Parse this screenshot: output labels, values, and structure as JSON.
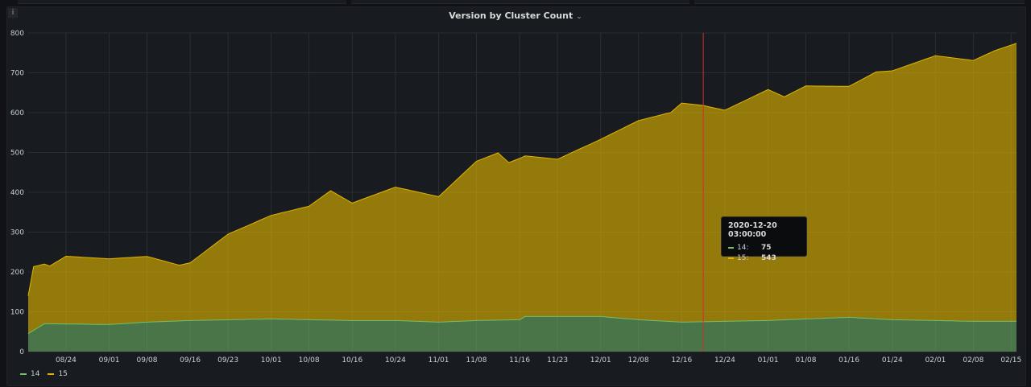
{
  "panel": {
    "title": "Version by Cluster Count",
    "info_icon": "i"
  },
  "colors": {
    "series_14": "#73bf69",
    "series_15": "#e0b400",
    "marker": "#d03030"
  },
  "tooltip": {
    "time": "2020-12-20 03:00:00",
    "rows": [
      {
        "name": "14:",
        "value": "75"
      },
      {
        "name": "15:",
        "value": "543"
      }
    ]
  },
  "legend": [
    {
      "name": "14"
    },
    {
      "name": "15"
    }
  ],
  "chart_data": {
    "type": "area",
    "stacked": true,
    "title": "Version by Cluster Count",
    "xlabel": "",
    "ylabel": "",
    "ylim": [
      0,
      800
    ],
    "yticks": [
      "0",
      "100",
      "200",
      "300",
      "400",
      "500",
      "600",
      "700",
      "800"
    ],
    "xticks": [
      "08/24",
      "09/01",
      "09/08",
      "09/16",
      "09/23",
      "10/01",
      "10/08",
      "10/16",
      "10/24",
      "11/01",
      "11/08",
      "11/16",
      "11/23",
      "12/01",
      "12/08",
      "12/16",
      "12/24",
      "01/01",
      "01/08",
      "01/16",
      "01/24",
      "02/01",
      "02/08",
      "02/15"
    ],
    "x_start": "2020-08-17",
    "x_end": "2021-02-16",
    "hover_time": "2020-12-20",
    "grid": true,
    "legend_position": "bottom-left",
    "series": [
      {
        "name": "14",
        "points": [
          [
            "2020-08-17",
            45
          ],
          [
            "2020-08-20",
            70
          ],
          [
            "2020-09-01",
            68
          ],
          [
            "2020-09-08",
            74
          ],
          [
            "2020-09-16",
            78
          ],
          [
            "2020-10-01",
            82
          ],
          [
            "2020-10-16",
            78
          ],
          [
            "2020-10-24",
            78
          ],
          [
            "2020-11-01",
            74
          ],
          [
            "2020-11-08",
            78
          ],
          [
            "2020-11-16",
            80
          ],
          [
            "2020-11-17",
            88
          ],
          [
            "2020-11-23",
            88
          ],
          [
            "2020-12-01",
            88
          ],
          [
            "2020-12-08",
            80
          ],
          [
            "2020-12-16",
            74
          ],
          [
            "2020-12-20",
            75
          ],
          [
            "2021-01-01",
            78
          ],
          [
            "2021-01-08",
            82
          ],
          [
            "2021-01-16",
            86
          ],
          [
            "2021-01-24",
            80
          ],
          [
            "2021-02-01",
            78
          ],
          [
            "2021-02-08",
            76
          ],
          [
            "2021-02-16",
            76
          ]
        ]
      },
      {
        "name": "15",
        "points": [
          [
            "2020-08-17",
            95
          ],
          [
            "2020-08-18",
            160
          ],
          [
            "2020-08-21",
            145
          ],
          [
            "2020-08-24",
            170
          ],
          [
            "2020-09-01",
            165
          ],
          [
            "2020-09-08",
            165
          ],
          [
            "2020-09-14",
            140
          ],
          [
            "2020-09-16",
            145
          ],
          [
            "2020-09-23",
            215
          ],
          [
            "2020-10-01",
            260
          ],
          [
            "2020-10-08",
            285
          ],
          [
            "2020-10-12",
            325
          ],
          [
            "2020-10-16",
            295
          ],
          [
            "2020-10-24",
            335
          ],
          [
            "2020-11-01",
            315
          ],
          [
            "2020-11-08",
            400
          ],
          [
            "2020-11-12",
            420
          ],
          [
            "2020-11-14",
            395
          ],
          [
            "2020-11-16",
            405
          ],
          [
            "2020-11-23",
            395
          ],
          [
            "2020-12-01",
            445
          ],
          [
            "2020-12-08",
            500
          ],
          [
            "2020-12-14",
            525
          ],
          [
            "2020-12-16",
            550
          ],
          [
            "2020-12-20",
            543
          ],
          [
            "2020-12-24",
            530
          ],
          [
            "2021-01-01",
            580
          ],
          [
            "2021-01-04",
            560
          ],
          [
            "2021-01-08",
            585
          ],
          [
            "2021-01-16",
            580
          ],
          [
            "2021-01-21",
            620
          ],
          [
            "2021-01-24",
            625
          ],
          [
            "2021-02-01",
            665
          ],
          [
            "2021-02-08",
            655
          ],
          [
            "2021-02-12",
            680
          ],
          [
            "2021-02-16",
            698
          ]
        ]
      }
    ]
  }
}
